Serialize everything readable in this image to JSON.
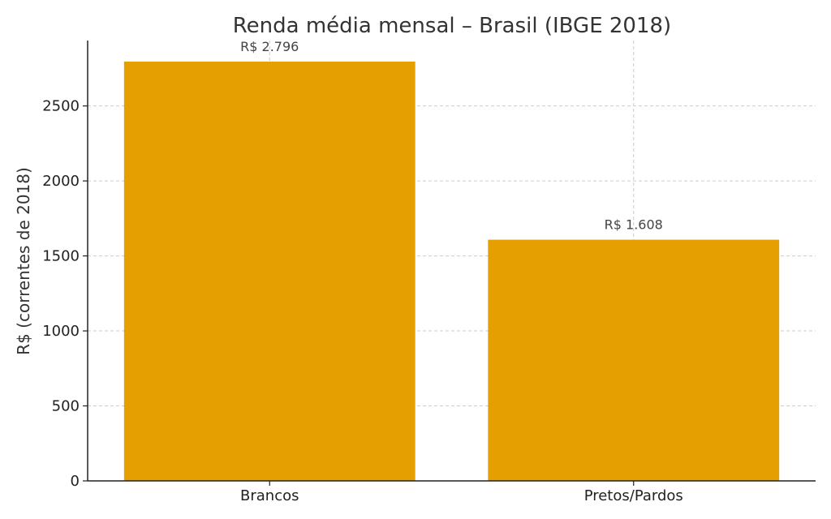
{
  "chart_data": {
    "type": "bar",
    "title": "Renda média mensal – Brasil (IBGE 2018)",
    "xlabel": "",
    "ylabel": "R$ (correntes de 2018)",
    "categories": [
      "Brancos",
      "Pretos/Pardos"
    ],
    "values": [
      2796,
      1608
    ],
    "data_labels": [
      "R$ 2.796",
      "R$ 1.608"
    ],
    "yticks": [
      0,
      500,
      1000,
      1500,
      2000,
      2500
    ],
    "ylim": [
      0,
      2936
    ],
    "grid": true,
    "bar_color": "#E69F00"
  }
}
